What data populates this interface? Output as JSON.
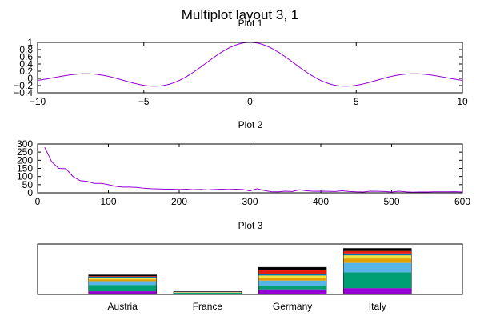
{
  "title": "Multiplot layout 3, 1",
  "colors": {
    "line": "#9400d3",
    "stack": [
      "#9400d3",
      "#009e73",
      "#56b4e9",
      "#e69f00",
      "#f0e442",
      "#0072b2",
      "#e51e10",
      "#000000"
    ]
  },
  "chart_data": [
    {
      "type": "line",
      "title": "Plot 1",
      "function": "sin(x)/x",
      "xlim": [
        -10,
        10
      ],
      "ylim": [
        -0.4,
        1
      ],
      "xticks": [
        -10,
        -5,
        0,
        5,
        10
      ],
      "xtick_labels": [
        "−10",
        "−5",
        "0",
        "5",
        "10"
      ],
      "yticks": [
        -0.4,
        -0.2,
        0,
        0.2,
        0.4,
        0.6,
        0.8,
        1
      ],
      "ytick_labels": [
        "−0.4",
        "−0.2",
        "0",
        "0.2",
        "0.4",
        "0.6",
        "0.8",
        "1"
      ],
      "grid": false
    },
    {
      "type": "line",
      "title": "Plot 2",
      "xlim": [
        0,
        600
      ],
      "ylim": [
        0,
        300
      ],
      "xticks": [
        0,
        100,
        200,
        300,
        400,
        500,
        600
      ],
      "xtick_labels": [
        "0",
        "100",
        "200",
        "300",
        "400",
        "500",
        "600"
      ],
      "yticks": [
        0,
        50,
        100,
        150,
        200,
        250,
        300
      ],
      "ytick_labels": [
        "0",
        "50",
        "100",
        "150",
        "200",
        "250",
        "300"
      ],
      "x": [
        10,
        20,
        30,
        40,
        50,
        60,
        70,
        80,
        90,
        100,
        110,
        120,
        130,
        140,
        150,
        160,
        170,
        180,
        190,
        200,
        210,
        220,
        230,
        240,
        250,
        260,
        270,
        280,
        290,
        300,
        310,
        320,
        330,
        340,
        350,
        360,
        370,
        380,
        390,
        400,
        410,
        420,
        430,
        440,
        450,
        460,
        470,
        480,
        490,
        500,
        510,
        520,
        530,
        540,
        550,
        560,
        570,
        580,
        590,
        600
      ],
      "y": [
        280,
        190,
        150,
        148,
        100,
        75,
        70,
        58,
        58,
        50,
        40,
        35,
        35,
        33,
        28,
        25,
        24,
        22,
        22,
        20,
        22,
        19,
        21,
        18,
        20,
        22,
        20,
        22,
        20,
        12,
        25,
        14,
        7,
        6,
        10,
        8,
        19,
        12,
        9,
        10,
        9,
        8,
        12,
        8,
        6,
        5,
        10,
        9,
        8,
        5,
        10,
        6,
        4,
        5,
        5,
        6,
        6,
        6,
        7,
        5
      ],
      "grid": false
    },
    {
      "type": "bar",
      "stacked": true,
      "title": "Plot 3",
      "categories": [
        "Austria",
        "France",
        "Germany",
        "Italy"
      ],
      "series": [
        {
          "values": [
            5,
            0.5,
            8,
            10
          ]
        },
        {
          "values": [
            10,
            2,
            6,
            25
          ]
        },
        {
          "values": [
            6,
            0.5,
            8,
            15
          ]
        },
        {
          "values": [
            3,
            0.5,
            4,
            7
          ]
        },
        {
          "values": [
            2,
            0.3,
            4,
            5
          ]
        },
        {
          "values": [
            2,
            0.3,
            2,
            3
          ]
        },
        {
          "values": [
            1,
            0.2,
            7,
            4
          ]
        },
        {
          "values": [
            2,
            0.3,
            4,
            4
          ]
        }
      ],
      "ylim": [
        0,
        80
      ]
    }
  ]
}
